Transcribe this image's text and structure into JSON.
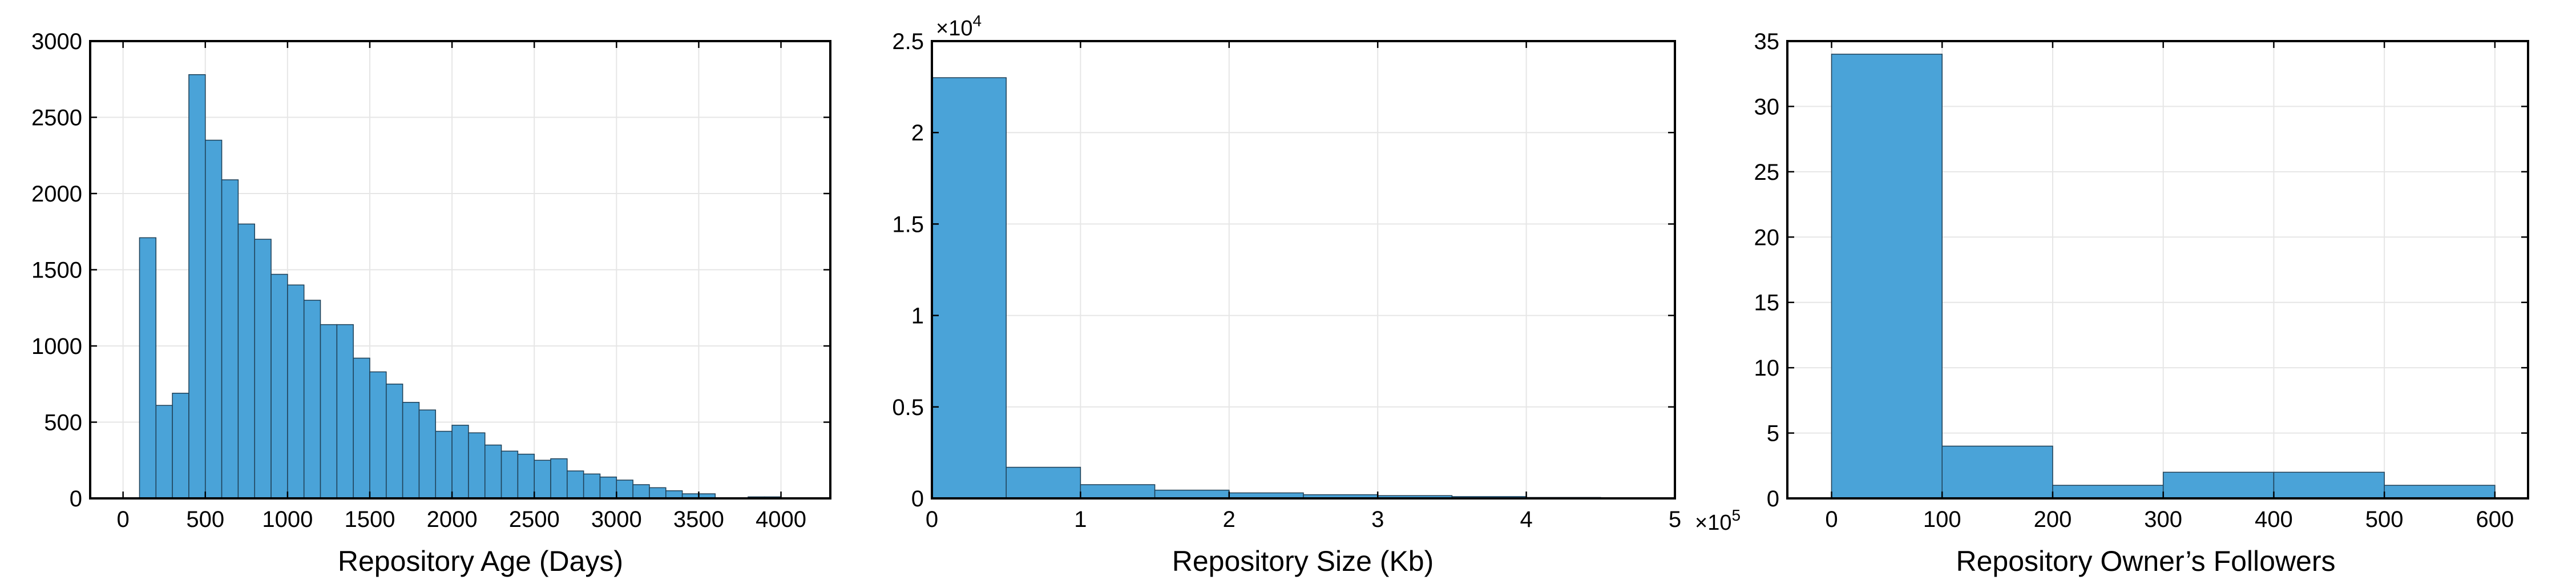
{
  "chart_data": [
    {
      "type": "bar",
      "title": "",
      "xlabel": "Repository Age (Days)",
      "ylabel": "",
      "xlim": [
        -200,
        4300
      ],
      "ylim": [
        0,
        3000
      ],
      "xticks": [
        "0",
        "500",
        "1000",
        "1500",
        "2000",
        "2500",
        "3000",
        "3500",
        "4000"
      ],
      "yticks": [
        "0",
        "500",
        "1000",
        "1500",
        "2000",
        "2500",
        "3000"
      ],
      "bin_width": 100,
      "bin_start": [
        100,
        200,
        300,
        400,
        500,
        600,
        700,
        800,
        900,
        1000,
        1100,
        1200,
        1300,
        1400,
        1500,
        1600,
        1700,
        1800,
        1900,
        2000,
        2100,
        2200,
        2300,
        2400,
        2500,
        2600,
        2700,
        2800,
        2900,
        3000,
        3100,
        3200,
        3300,
        3400,
        3500,
        3600,
        3700,
        3800,
        3900
      ],
      "values": [
        1710,
        610,
        690,
        2780,
        2350,
        2090,
        1800,
        1700,
        1470,
        1400,
        1300,
        1140,
        1140,
        920,
        830,
        750,
        630,
        580,
        440,
        480,
        430,
        350,
        310,
        290,
        250,
        260,
        180,
        160,
        140,
        120,
        90,
        70,
        50,
        30,
        30,
        0,
        0,
        10,
        10
      ],
      "grid": true
    },
    {
      "type": "bar",
      "title": "",
      "xlabel": "Repository Size (Kb)",
      "ylabel": "",
      "x_exponent": "10",
      "x_exponent_power": "5",
      "y_exponent": "10",
      "y_exponent_power": "4",
      "xlim": [
        0,
        5
      ],
      "ylim": [
        0,
        2.5
      ],
      "xticks": [
        "0",
        "1",
        "2",
        "3",
        "4",
        "5"
      ],
      "yticks": [
        "0",
        "0.5",
        "1",
        "1.5",
        "2",
        "2.5"
      ],
      "bin_width": 0.5,
      "bin_start": [
        0,
        0.5,
        1.0,
        1.5,
        2.0,
        2.5,
        3.0,
        3.5,
        4.0
      ],
      "values": [
        2.3,
        0.17,
        0.075,
        0.045,
        0.03,
        0.02,
        0.015,
        0.01,
        0.005
      ],
      "grid": true
    },
    {
      "type": "bar",
      "title": "",
      "xlabel": "Repository Owner’s Followers",
      "ylabel": "",
      "xlim": [
        -40,
        630
      ],
      "ylim": [
        0,
        35
      ],
      "xticks": [
        "0",
        "100",
        "200",
        "300",
        "400",
        "500",
        "600"
      ],
      "yticks": [
        "0",
        "5",
        "10",
        "15",
        "20",
        "25",
        "30",
        "35"
      ],
      "bin_width": 100,
      "bin_start": [
        0,
        100,
        200,
        300,
        400,
        500
      ],
      "values": [
        34,
        4,
        1,
        2,
        2,
        1
      ],
      "grid": true
    }
  ]
}
